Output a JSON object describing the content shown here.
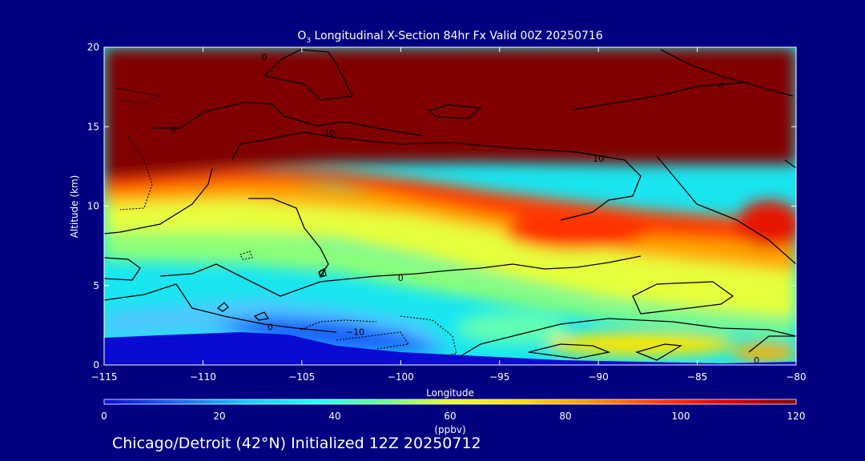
{
  "chart_data": {
    "type": "heatmap",
    "title_main": "O",
    "title_sub": "3",
    "title_rest": " Longitudinal X-Section 84hr  Fx Valid 00Z 20250716",
    "xlabel": "Longitude",
    "ylabel": "Altitude (km)",
    "xlim": [
      -115,
      -80
    ],
    "ylim": [
      0,
      20
    ],
    "x_ticks": [
      -115,
      -110,
      -105,
      -100,
      -95,
      -90,
      -85,
      -80
    ],
    "x_tick_labels": [
      "−115",
      "−110",
      "−105",
      "−100",
      "−95",
      "−90",
      "−85",
      "−80"
    ],
    "y_ticks": [
      0,
      5,
      10,
      15,
      20
    ],
    "y_tick_labels": [
      "0",
      "5",
      "10",
      "15",
      "20"
    ],
    "colorbar": {
      "label": "(ppbv)",
      "range": [
        0,
        120
      ],
      "ticks": [
        0,
        20,
        40,
        60,
        80,
        100,
        120
      ],
      "tick_labels": [
        "0",
        "20",
        "40",
        "60",
        "80",
        "100",
        "120"
      ],
      "stops": [
        "#0a0ad2",
        "#1e64ff",
        "#19c3ff",
        "#19ffff",
        "#64ff8c",
        "#e6ff32",
        "#ffdc00",
        "#ff9600",
        "#ff3c00",
        "#dc0000",
        "#800000"
      ]
    },
    "contour_labels": [
      {
        "text": "0",
        "lon": -106.9,
        "alt": 19.4
      },
      {
        "text": "0",
        "lon": -83.8,
        "alt": 17.6
      },
      {
        "text": "0",
        "lon": -111.5,
        "alt": 14.8
      },
      {
        "text": "10",
        "lon": -103.6,
        "alt": 14.6
      },
      {
        "text": "10",
        "lon": -90.0,
        "alt": 13.0
      },
      {
        "text": "0",
        "lon": -104.0,
        "alt": 5.8
      },
      {
        "text": "0",
        "lon": -100.0,
        "alt": 5.5
      },
      {
        "text": "0",
        "lon": -106.6,
        "alt": 2.4
      },
      {
        "text": "−10",
        "lon": -102.3,
        "alt": 2.1
      },
      {
        "text": "0",
        "lon": -82.0,
        "alt": 0.3
      }
    ],
    "footer": "Chicago/Detroit (42°N) Initialized 12Z 20250712"
  }
}
